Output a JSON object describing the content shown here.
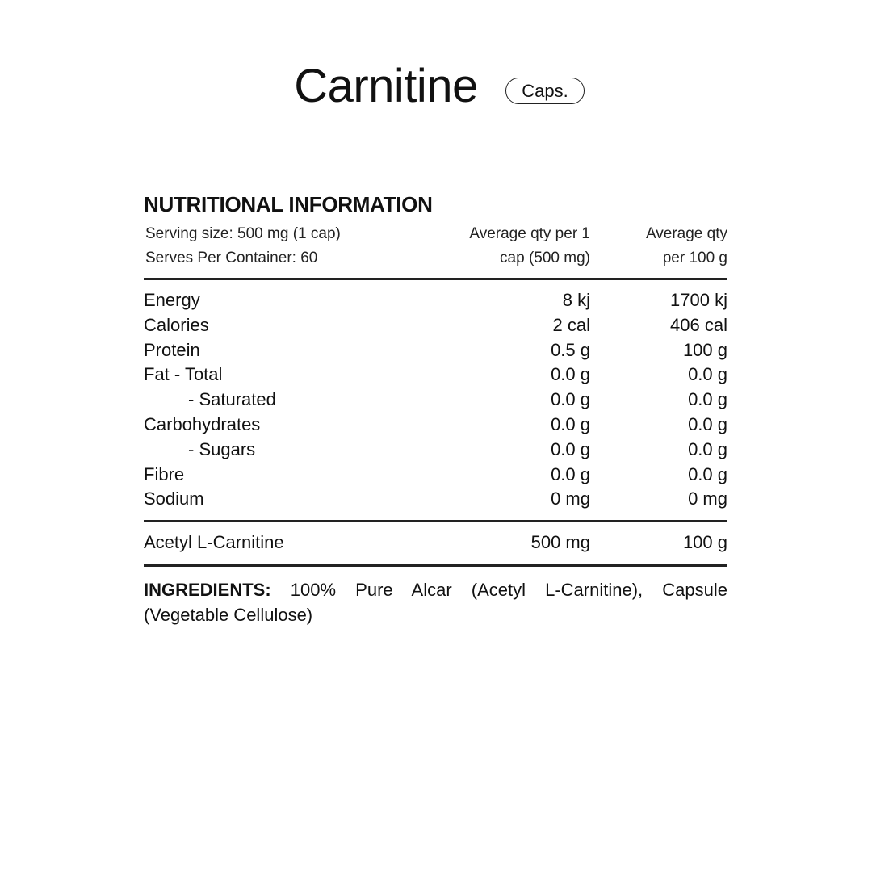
{
  "title": "Carnitine",
  "badge": "Caps.",
  "heading": "NUTRITIONAL INFORMATION",
  "serving_size": "Serving size: 500 mg (1 cap)",
  "serves_per_container": "Serves Per Container: 60",
  "col1_header": [
    "Average qty per 1",
    "cap (500 mg)"
  ],
  "col2_header": [
    "Average qty",
    "per 100 g"
  ],
  "rows": [
    {
      "label": "Energy",
      "per_serve": "8 kj",
      "per_100g": "1700 kj"
    },
    {
      "label": "Calories",
      "per_serve": "2 cal",
      "per_100g": "406 cal"
    },
    {
      "label": "Protein",
      "per_serve": "0.5 g",
      "per_100g": "100 g"
    },
    {
      "label": "Fat  - Total",
      "per_serve": "0.0 g",
      "per_100g": "0.0 g"
    },
    {
      "label": "- Saturated",
      "per_serve": "0.0 g",
      "per_100g": "0.0 g",
      "indent": true
    },
    {
      "label": "Carbohydrates",
      "per_serve": "0.0 g",
      "per_100g": "0.0 g"
    },
    {
      "label": "- Sugars",
      "per_serve": "0.0 g",
      "per_100g": "0.0 g",
      "indent": true
    },
    {
      "label": "Fibre",
      "per_serve": "0.0 g",
      "per_100g": "0.0 g"
    },
    {
      "label": "Sodium",
      "per_serve": "0 mg",
      "per_100g": "0 mg"
    }
  ],
  "active": {
    "label": "Acetyl L-Carnitine",
    "per_serve": "500 mg",
    "per_100g": "100 g"
  },
  "ingredients": {
    "label": "INGREDIENTS:",
    "text": "100% Pure Alcar (Acetyl L-Carnitine), Capsule (Vegetable Cellulose)"
  }
}
